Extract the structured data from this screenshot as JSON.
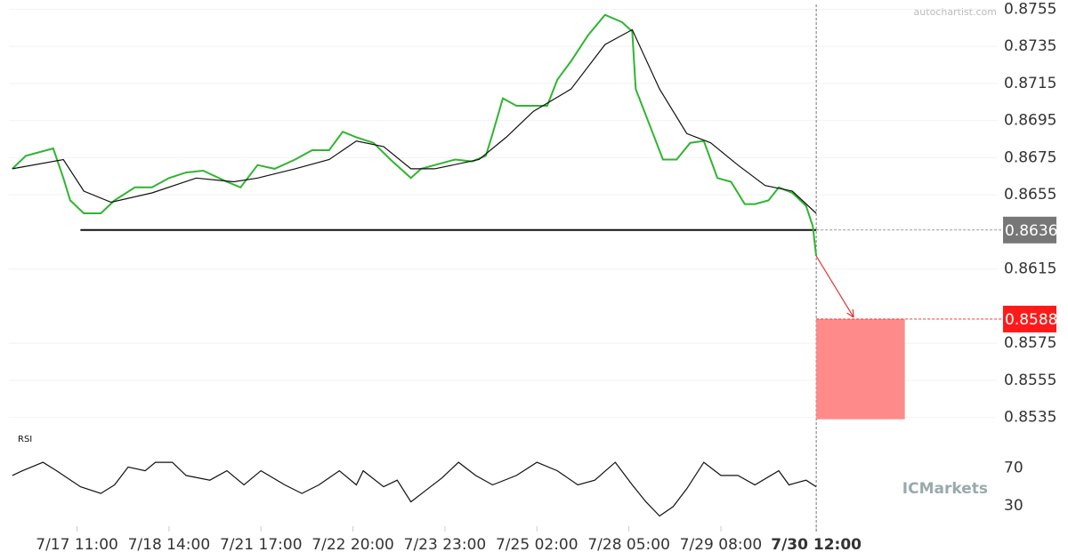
{
  "chart_data": [
    {
      "type": "line",
      "watermark": "autochartist.com",
      "brand": "ICMarkets",
      "xlim": [
        -20,
        270
      ],
      "ylim": [
        0.853,
        0.876
      ],
      "grid": true,
      "xticks": [
        {
          "value": 0,
          "label": "7/17 11:00"
        },
        {
          "value": 27,
          "label": "7/18 14:00"
        },
        {
          "value": 54,
          "label": "7/21 17:00"
        },
        {
          "value": 81,
          "label": "7/22 20:00"
        },
        {
          "value": 108,
          "label": "7/23 23:00"
        },
        {
          "value": 135,
          "label": "7/25 02:00"
        },
        {
          "value": 162,
          "label": "7/28 05:00"
        },
        {
          "value": 189,
          "label": "7/29 08:00"
        },
        {
          "value": 217,
          "label": "7/30 12:00"
        }
      ],
      "yticks": [
        0.8755,
        0.8735,
        0.8715,
        0.8695,
        0.8675,
        0.8655,
        0.8615,
        0.8575,
        0.8555,
        0.8535
      ],
      "series": [
        {
          "name": "Price",
          "color": "#2fb52f",
          "x": [
            -19,
            -15,
            -7,
            -4,
            -2,
            2,
            7,
            11,
            17,
            22,
            27,
            32,
            37,
            44,
            48,
            53,
            58,
            64,
            69,
            74,
            78,
            82,
            87,
            92,
            98,
            101,
            105,
            111,
            116,
            120,
            122,
            125,
            129,
            134,
            138,
            141,
            145,
            150,
            155,
            160,
            163,
            164,
            168,
            172,
            176,
            180,
            184,
            188,
            192,
            196,
            199,
            203,
            206,
            210,
            214,
            216,
            217
          ],
          "values": [
            0.8669,
            0.8676,
            0.868,
            0.8664,
            0.8652,
            0.8645,
            0.8645,
            0.8652,
            0.8659,
            0.8659,
            0.8664,
            0.8667,
            0.8668,
            0.8662,
            0.8659,
            0.8671,
            0.8669,
            0.8674,
            0.8679,
            0.8679,
            0.8689,
            0.8686,
            0.8683,
            0.8674,
            0.8664,
            0.8669,
            0.8671,
            0.8674,
            0.8673,
            0.8676,
            0.8688,
            0.8707,
            0.8703,
            0.8703,
            0.8703,
            0.8717,
            0.8727,
            0.8741,
            0.8752,
            0.8748,
            0.8743,
            0.8712,
            0.8693,
            0.8674,
            0.8674,
            0.8683,
            0.8684,
            0.8664,
            0.8662,
            0.865,
            0.865,
            0.8652,
            0.8659,
            0.8656,
            0.8649,
            0.8638,
            0.8622
          ]
        },
        {
          "name": "Moving Average",
          "color": "#111111",
          "x": [
            -19,
            -4,
            2,
            10,
            22,
            35,
            46,
            53,
            64,
            74,
            82,
            90,
            98,
            105,
            118,
            126,
            134,
            145,
            155,
            163,
            171,
            179,
            186,
            194,
            202,
            210,
            217
          ],
          "values": [
            0.8669,
            0.8674,
            0.8657,
            0.8651,
            0.8656,
            0.8664,
            0.8662,
            0.8664,
            0.8669,
            0.8674,
            0.8684,
            0.8681,
            0.8669,
            0.8669,
            0.8674,
            0.8686,
            0.87,
            0.8712,
            0.8736,
            0.8744,
            0.8712,
            0.8688,
            0.8683,
            0.8671,
            0.866,
            0.8657,
            0.8645
          ]
        }
      ],
      "support": 0.8636,
      "support_start": 1,
      "target": 0.8588,
      "target_low": 0.8534,
      "target_x": [
        217,
        243
      ],
      "target_color": "#ff8a8a",
      "target_label_color": "#ff1a1a",
      "support_label_color": "#777777"
    },
    {
      "type": "line",
      "title": "RSI",
      "xlim": [
        -20,
        270
      ],
      "ylim": [
        10,
        95
      ],
      "yticks": [
        70,
        30
      ],
      "series": [
        {
          "name": "RSI",
          "color": "#111111",
          "x": [
            -19,
            -16,
            -10,
            -6,
            1,
            7,
            11,
            15,
            20,
            23,
            28,
            32,
            39,
            44,
            49,
            54,
            61,
            66,
            71,
            77,
            82,
            84,
            90,
            94,
            98,
            103,
            107,
            112,
            117,
            122,
            129,
            135,
            141,
            147,
            152,
            158,
            163,
            167,
            171,
            175,
            179,
            184,
            189,
            194,
            199,
            206,
            209,
            214,
            217
          ],
          "values": [
            62,
            67,
            76,
            67,
            50,
            43,
            52,
            71,
            67,
            76,
            76,
            62,
            57,
            67,
            52,
            67,
            52,
            43,
            52,
            67,
            52,
            67,
            50,
            57,
            34,
            48,
            59,
            76,
            62,
            52,
            62,
            76,
            67,
            52,
            57,
            76,
            52,
            34,
            19,
            29,
            48,
            76,
            62,
            62,
            52,
            67,
            52,
            57,
            50
          ]
        }
      ]
    }
  ]
}
